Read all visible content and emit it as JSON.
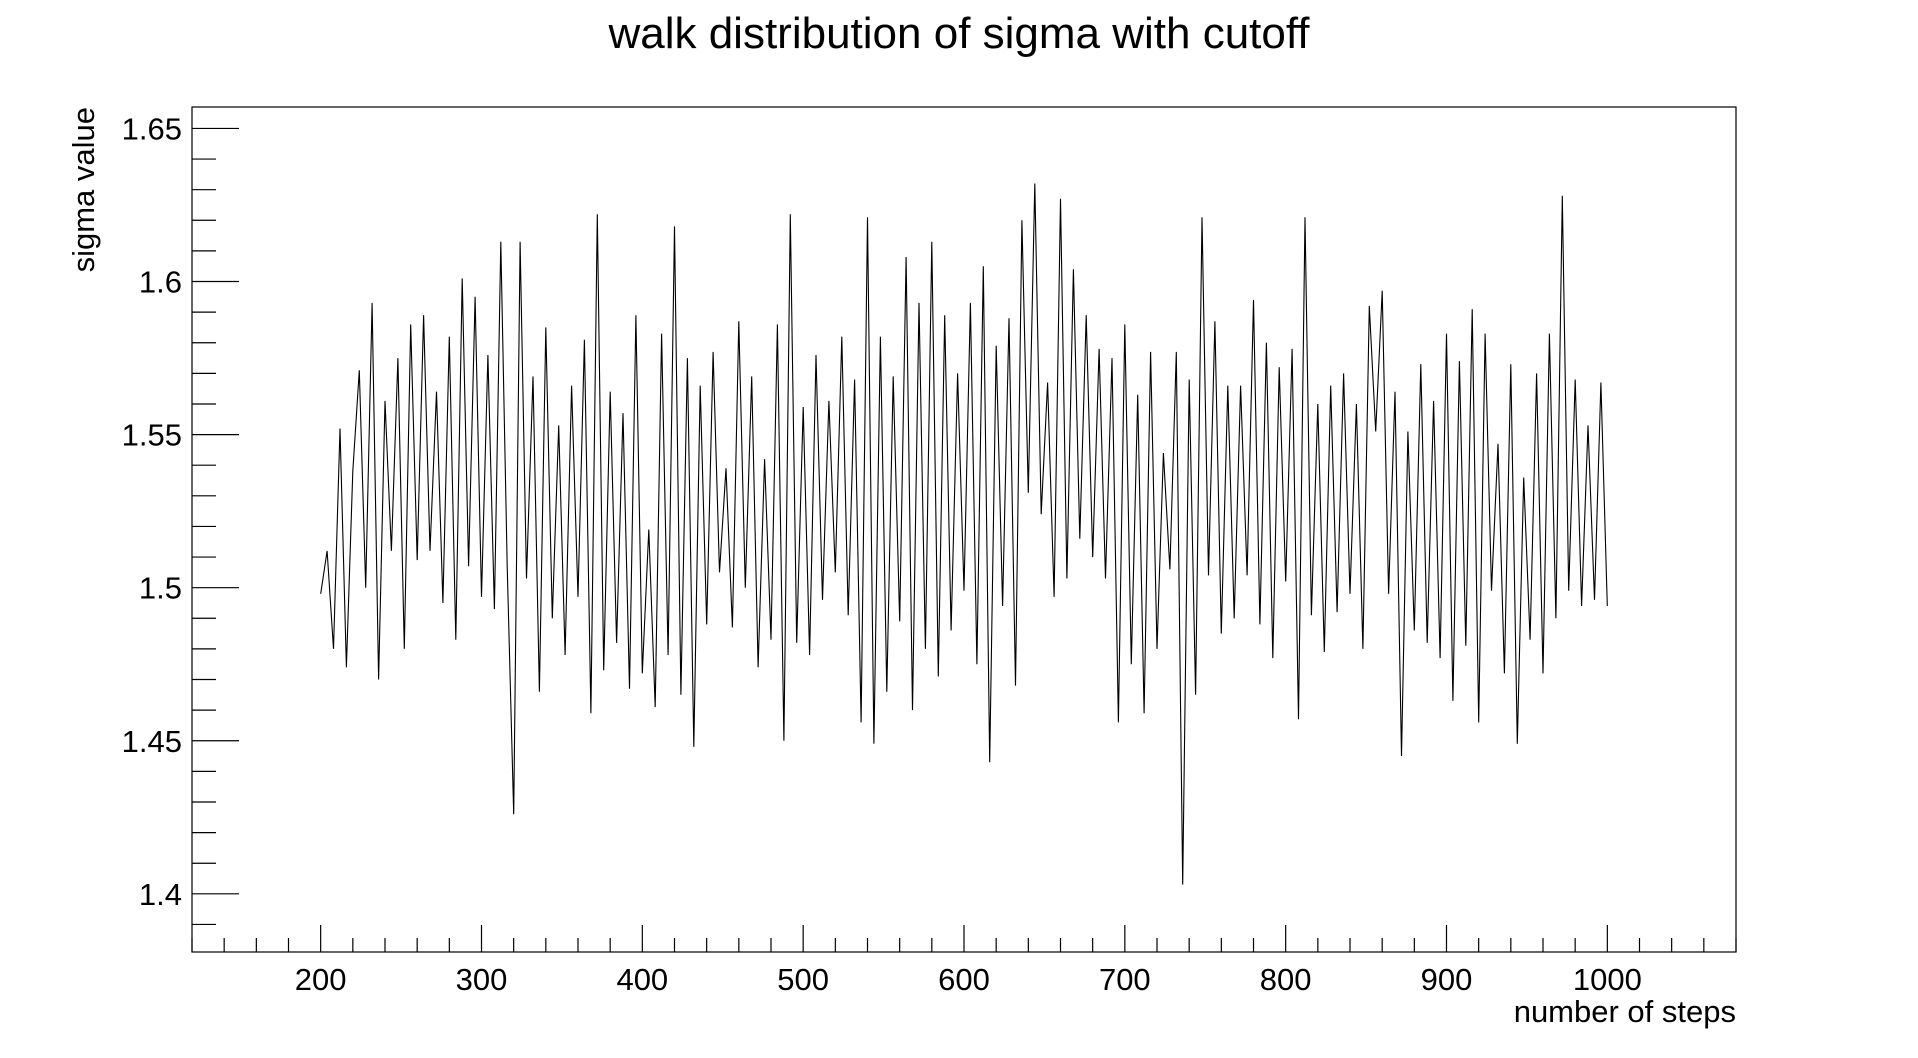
{
  "chart_data": {
    "type": "line",
    "title": "walk distribution of sigma with cutoff",
    "xlabel": "number of steps",
    "ylabel": "sigma value",
    "xlim": [
      120,
      1080
    ],
    "ylim": [
      1.381,
      1.657
    ],
    "x_ticks": [
      200,
      300,
      400,
      500,
      600,
      700,
      800,
      900,
      1000
    ],
    "y_ticks": [
      1.4,
      1.45,
      1.5,
      1.55,
      1.6,
      1.65
    ],
    "x_tick_labels": [
      "200",
      "300",
      "400",
      "500",
      "600",
      "700",
      "800",
      "900",
      "1000"
    ],
    "y_tick_labels": [
      "1.4",
      "1.45",
      "1.5",
      "1.55",
      "1.6",
      "1.65"
    ],
    "x_minor_step": 20,
    "y_minor_step": 0.01,
    "grid": false,
    "legend": "none",
    "series": [
      {
        "line_color": "#000000",
        "x": [
          200,
          204,
          208,
          212,
          216,
          220,
          224,
          228,
          232,
          236,
          240,
          244,
          248,
          252,
          256,
          260,
          264,
          268,
          272,
          276,
          280,
          284,
          288,
          292,
          296,
          300,
          304,
          308,
          312,
          316,
          320,
          324,
          328,
          332,
          336,
          340,
          344,
          348,
          352,
          356,
          360,
          364,
          368,
          372,
          376,
          380,
          384,
          388,
          392,
          396,
          400,
          404,
          408,
          412,
          416,
          420,
          424,
          428,
          432,
          436,
          440,
          444,
          448,
          452,
          456,
          460,
          464,
          468,
          472,
          476,
          480,
          484,
          488,
          492,
          496,
          500,
          504,
          508,
          512,
          516,
          520,
          524,
          528,
          532,
          536,
          540,
          544,
          548,
          552,
          556,
          560,
          564,
          568,
          572,
          576,
          580,
          584,
          588,
          592,
          596,
          600,
          604,
          608,
          612,
          616,
          620,
          624,
          628,
          632,
          636,
          640,
          644,
          648,
          652,
          656,
          660,
          664,
          668,
          672,
          676,
          680,
          684,
          688,
          692,
          696,
          700,
          704,
          708,
          712,
          716,
          720,
          724,
          728,
          732,
          736,
          740,
          744,
          748,
          752,
          756,
          760,
          764,
          768,
          772,
          776,
          780,
          784,
          788,
          792,
          796,
          800,
          804,
          808,
          812,
          816,
          820,
          824,
          828,
          832,
          836,
          840,
          844,
          848,
          852,
          856,
          860,
          864,
          868,
          872,
          876,
          880,
          884,
          888,
          892,
          896,
          900,
          904,
          908,
          912,
          916,
          920,
          924,
          928,
          932,
          936,
          940,
          944,
          948,
          952,
          956,
          960,
          964,
          968,
          972,
          976,
          980,
          984,
          988,
          992,
          996,
          1000
        ],
        "y": [
          1.498,
          1.512,
          1.48,
          1.552,
          1.474,
          1.538,
          1.571,
          1.5,
          1.593,
          1.47,
          1.561,
          1.512,
          1.575,
          1.48,
          1.586,
          1.509,
          1.589,
          1.512,
          1.564,
          1.495,
          1.582,
          1.483,
          1.601,
          1.507,
          1.595,
          1.497,
          1.576,
          1.493,
          1.613,
          1.507,
          1.426,
          1.613,
          1.503,
          1.569,
          1.466,
          1.585,
          1.49,
          1.553,
          1.478,
          1.566,
          1.497,
          1.581,
          1.459,
          1.622,
          1.473,
          1.564,
          1.482,
          1.557,
          1.467,
          1.589,
          1.472,
          1.519,
          1.461,
          1.583,
          1.478,
          1.618,
          1.465,
          1.575,
          1.448,
          1.566,
          1.488,
          1.577,
          1.505,
          1.539,
          1.487,
          1.587,
          1.5,
          1.569,
          1.474,
          1.542,
          1.483,
          1.586,
          1.45,
          1.622,
          1.482,
          1.559,
          1.478,
          1.576,
          1.496,
          1.561,
          1.505,
          1.582,
          1.491,
          1.568,
          1.456,
          1.621,
          1.449,
          1.582,
          1.466,
          1.569,
          1.489,
          1.608,
          1.46,
          1.593,
          1.48,
          1.613,
          1.471,
          1.589,
          1.486,
          1.57,
          1.499,
          1.593,
          1.475,
          1.605,
          1.443,
          1.579,
          1.494,
          1.588,
          1.468,
          1.62,
          1.531,
          1.632,
          1.524,
          1.567,
          1.497,
          1.627,
          1.503,
          1.604,
          1.516,
          1.589,
          1.51,
          1.578,
          1.503,
          1.575,
          1.456,
          1.586,
          1.475,
          1.563,
          1.459,
          1.577,
          1.48,
          1.544,
          1.506,
          1.577,
          1.403,
          1.568,
          1.465,
          1.621,
          1.504,
          1.587,
          1.485,
          1.566,
          1.49,
          1.566,
          1.504,
          1.594,
          1.488,
          1.58,
          1.477,
          1.572,
          1.502,
          1.578,
          1.457,
          1.621,
          1.491,
          1.56,
          1.479,
          1.566,
          1.492,
          1.57,
          1.498,
          1.56,
          1.48,
          1.592,
          1.551,
          1.597,
          1.498,
          1.564,
          1.445,
          1.551,
          1.486,
          1.573,
          1.482,
          1.561,
          1.477,
          1.583,
          1.463,
          1.574,
          1.481,
          1.591,
          1.456,
          1.583,
          1.499,
          1.547,
          1.472,
          1.573,
          1.449,
          1.536,
          1.483,
          1.57,
          1.472,
          1.583,
          1.49,
          1.628,
          1.499,
          1.568,
          1.494,
          1.553,
          1.496,
          1.567,
          1.494
        ]
      }
    ]
  }
}
